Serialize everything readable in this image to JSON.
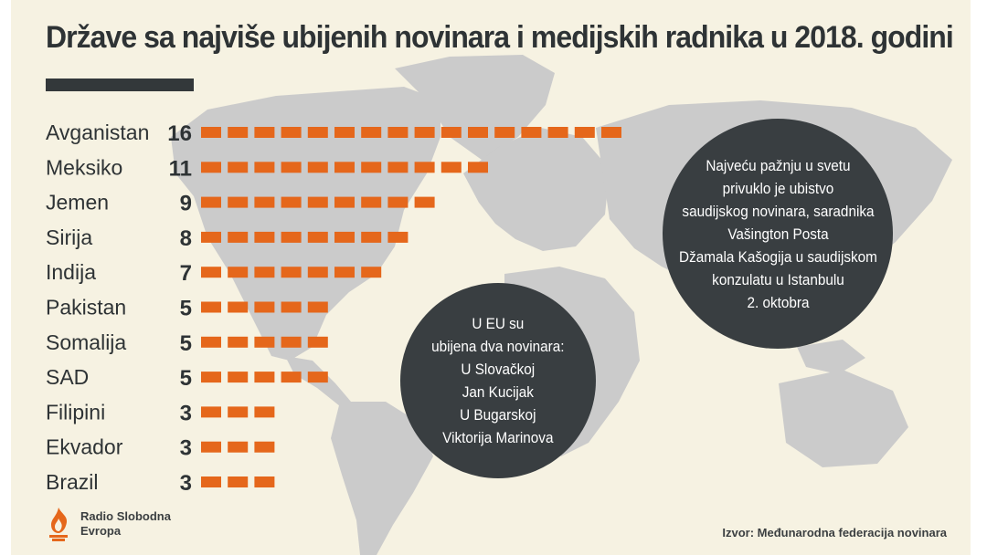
{
  "header": {
    "title": "Države sa najviše ubijenih novinara i medijskih radnika u 2018. godini"
  },
  "chart_data": {
    "type": "bar",
    "title": "Države sa najviše ubijenih novinara i medijskih radnika u 2018. godini",
    "categories": [
      "Avganistan",
      "Meksiko",
      "Jemen",
      "Sirija",
      "Indija",
      "Pakistan",
      "Somalija",
      "SAD",
      "Filipini",
      "Ekvador",
      "Brazil"
    ],
    "values": [
      16,
      11,
      9,
      8,
      7,
      5,
      5,
      5,
      3,
      3,
      3
    ],
    "xlabel": "",
    "ylabel": "",
    "unit_marker": "one orange block per killed journalist",
    "bar_color": "#e5671b",
    "grid": false
  },
  "annotations": {
    "eu": [
      "U EU su",
      "ubijena dva novinara:",
      "U Slovačkoj",
      "Jan Kucijak",
      "U Bugarskoj",
      "Viktorija Marinova"
    ],
    "saudi": [
      "Najveću pažnju u svetu",
      "privuklo je ubistvo",
      "saudijskog novinara, saradnika",
      "Vašington Posta",
      "Džamala Kašogija u saudijskom",
      "konzulatu u Istanbulu",
      "2. oktobra"
    ]
  },
  "footer": {
    "logo_line1": "Radio Slobodna",
    "logo_line2": "Evropa",
    "logo_icon": "rfe-rl-flame-icon",
    "source": "Izvor: Međunarodna federacija novinara"
  },
  "colors": {
    "background": "#f6f2e2",
    "map": "#cbcbcb",
    "bars": "#e5671b",
    "text": "#2e3335",
    "bubble": "#393e41"
  }
}
